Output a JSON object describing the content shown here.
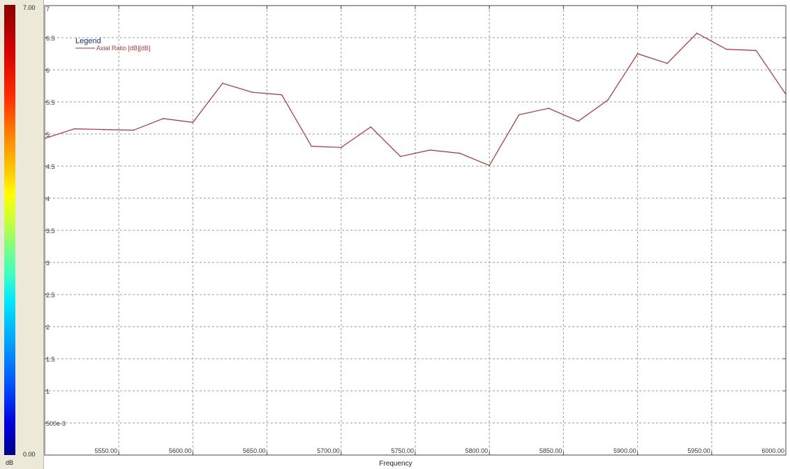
{
  "colorbar": {
    "max_label": "7.00",
    "min_label": "0.00",
    "unit_label": "dB"
  },
  "chart_data": {
    "type": "line",
    "xlabel": "Frequency",
    "ylabel": "",
    "xlim": [
      5500,
      6000
    ],
    "ylim": [
      0,
      7
    ],
    "grid": true,
    "line_color": "#b03030",
    "x_ticks": [
      {
        "value": 5550,
        "label": "5550.00"
      },
      {
        "value": 5600,
        "label": "5600.00"
      },
      {
        "value": 5650,
        "label": "5650.00"
      },
      {
        "value": 5700,
        "label": "5700.00"
      },
      {
        "value": 5750,
        "label": "5750.00"
      },
      {
        "value": 5800,
        "label": "5800.00"
      },
      {
        "value": 5850,
        "label": "5850.00"
      },
      {
        "value": 5900,
        "label": "5900.00"
      },
      {
        "value": 5950,
        "label": "5950.00"
      },
      {
        "value": 6000,
        "label": "6000.00"
      }
    ],
    "y_ticks": [
      {
        "value": 7,
        "label": "7"
      },
      {
        "value": 6.5,
        "label": "6.5"
      },
      {
        "value": 6,
        "label": "6"
      },
      {
        "value": 5.5,
        "label": "5.5"
      },
      {
        "value": 5,
        "label": "5"
      },
      {
        "value": 4.5,
        "label": "4.5"
      },
      {
        "value": 4,
        "label": "4"
      },
      {
        "value": 3.5,
        "label": "3.5"
      },
      {
        "value": 3,
        "label": "3"
      },
      {
        "value": 2.5,
        "label": "2.5"
      },
      {
        "value": 2,
        "label": "2"
      },
      {
        "value": 1.5,
        "label": "1.5"
      },
      {
        "value": 1,
        "label": "1"
      },
      {
        "value": 0.5,
        "label": "500e-3"
      }
    ],
    "legend": {
      "title": "Legend",
      "placement": "top-left",
      "entries": [
        "Axial Ratio [dB][dB]"
      ]
    },
    "series": [
      {
        "name": "Axial Ratio [dB][dB]",
        "x": [
          5500,
          5520,
          5540,
          5560,
          5580,
          5600,
          5620,
          5640,
          5660,
          5680,
          5700,
          5720,
          5740,
          5760,
          5780,
          5800,
          5820,
          5840,
          5860,
          5880,
          5900,
          5920,
          5940,
          5960,
          5980,
          6000
        ],
        "y": [
          4.93,
          5.08,
          5.07,
          5.06,
          5.24,
          5.18,
          5.79,
          5.65,
          5.61,
          4.81,
          4.79,
          5.11,
          4.65,
          4.75,
          4.7,
          4.51,
          5.3,
          5.4,
          5.2,
          5.53,
          6.25,
          6.1,
          6.57,
          6.32,
          6.3,
          5.62
        ]
      }
    ]
  }
}
